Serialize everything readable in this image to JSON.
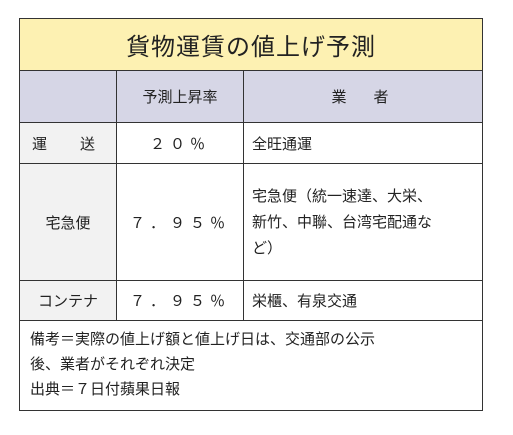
{
  "colors": {
    "title_bg": "#fdf1b2",
    "header_bg": "#d6d6e6",
    "label_bg": "#f2f2f2",
    "border": "#333333"
  },
  "title": "貨物運賃の値上げ予測",
  "table": {
    "headers": [
      "",
      "予測上昇率",
      "業　者"
    ],
    "rows": [
      {
        "label": "運　送",
        "rate": "２０％",
        "companies": [
          "全旺通運"
        ]
      },
      {
        "label": "宅急便",
        "rate": "７．９５％",
        "companies": [
          "宅急便（統一速達、大栄、",
          "新竹、中聯、台湾宅配通な",
          "ど）"
        ]
      },
      {
        "label": "コンテナ",
        "rate": "７．９５％",
        "companies": [
          "栄櫃、有泉交通"
        ]
      }
    ]
  },
  "notes": [
    "備考＝実際の値上げ額と値上げ日は、交通部の公示",
    "後、業者がそれぞれ決定",
    "出典＝７日付蘋果日報"
  ]
}
